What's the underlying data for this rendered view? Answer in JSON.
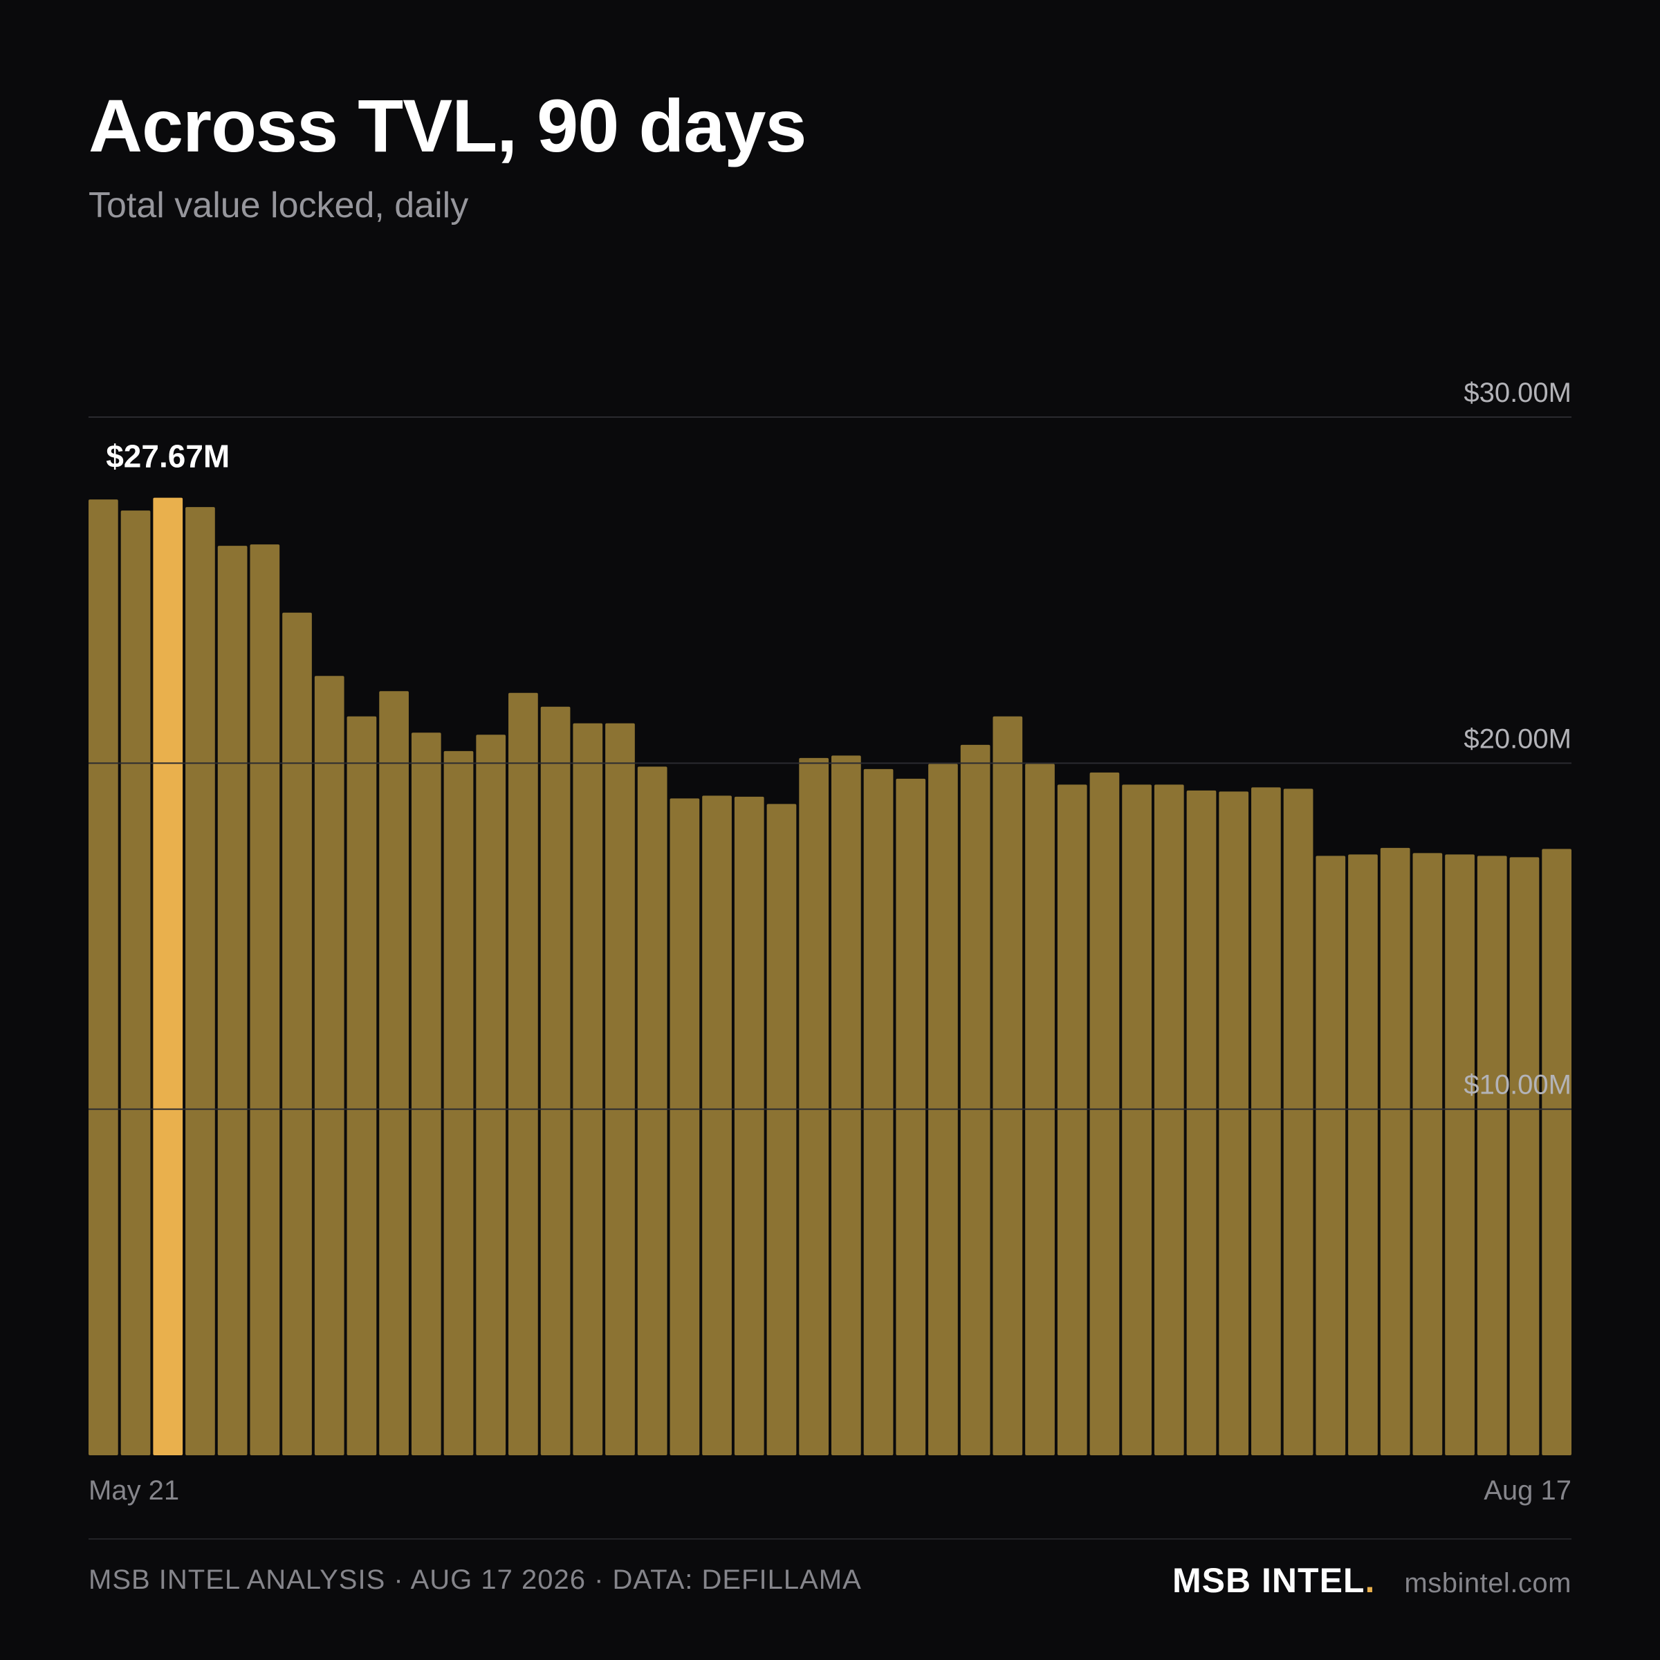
{
  "header": {
    "title": "Across TVL, 90 days",
    "subtitle": "Total value locked, daily"
  },
  "colors": {
    "background": "#0a0a0c",
    "bar": "#8c7333",
    "bar_highlight": "#e9b04d",
    "gridline": "#2b2b30",
    "tick_label": "#b3b3b8",
    "muted_text": "#85858b",
    "brand_accent": "#e9b04d"
  },
  "chart_data": {
    "type": "bar",
    "ylim": [
      0,
      30
    ],
    "y_unit": "$M",
    "y_ticks": [
      {
        "value": 30,
        "label": "$30.00M"
      },
      {
        "value": 20,
        "label": "$20.00M"
      },
      {
        "value": 10,
        "label": "$10.00M"
      }
    ],
    "x_start_label": "May 21",
    "x_end_label": "Aug 17",
    "values": [
      27.62,
      27.3,
      27.67,
      27.4,
      26.28,
      26.32,
      24.35,
      22.52,
      21.35,
      22.08,
      20.88,
      20.35,
      20.82,
      22.03,
      21.63,
      21.15,
      21.15,
      19.9,
      18.98,
      19.06,
      19.03,
      18.82,
      20.15,
      20.22,
      19.83,
      19.55,
      19.98,
      20.53,
      21.35,
      19.98,
      19.38,
      19.73,
      19.38,
      19.38,
      19.21,
      19.18,
      19.3,
      19.26,
      17.32,
      17.36,
      17.55,
      17.4,
      17.36,
      17.32,
      17.28,
      17.52
    ],
    "highlight_index": 2,
    "highlight_label": "$27.67M",
    "grid": true
  },
  "footer": {
    "credit": "MSB INTEL ANALYSIS · AUG 17 2026 · DATA: DEFILLAMA",
    "brand": "MSB INTEL",
    "brand_dot": ".",
    "site": "msbintel.com"
  }
}
